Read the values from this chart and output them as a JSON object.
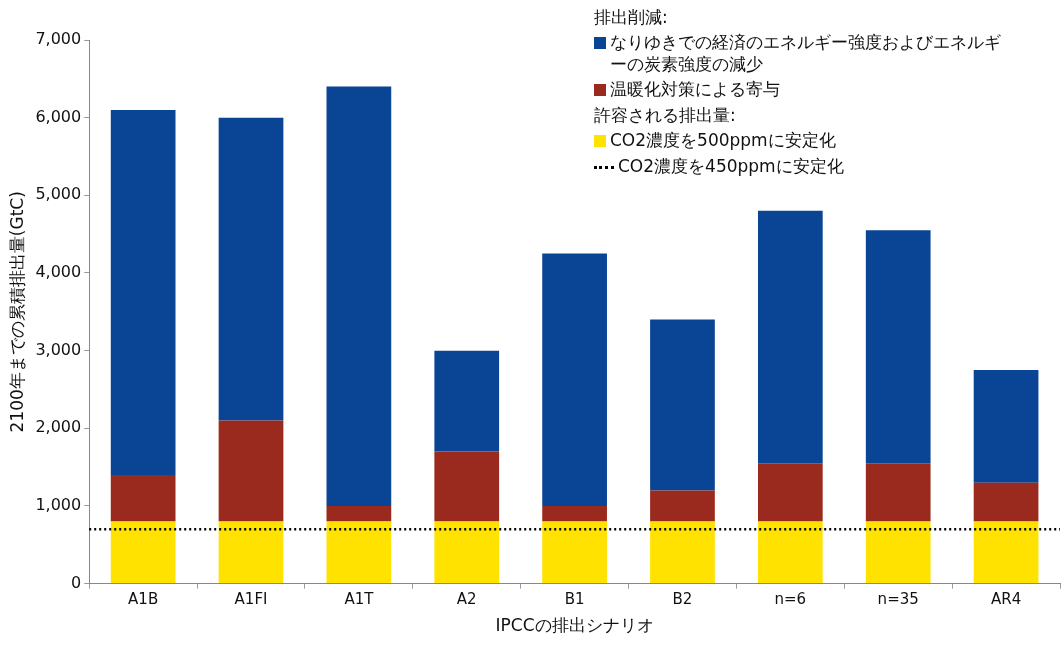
{
  "chart_data": {
    "type": "bar",
    "stacked": true,
    "xlabel": "IPCCの排出シナリオ",
    "ylabel": "2100年までの累積排出量(GtC)",
    "categories": [
      "A1B",
      "A1FI",
      "A1T",
      "A2",
      "B1",
      "B2",
      "n=6",
      "n=35",
      "AR4"
    ],
    "series": [
      {
        "name": "CO2濃度を500ppmに安定化",
        "color": "#ffe200",
        "values": [
          800,
          800,
          800,
          800,
          800,
          800,
          800,
          800,
          800
        ]
      },
      {
        "name": "温暖化対策による寄与",
        "color": "#9a2a1e",
        "values": [
          600,
          1300,
          200,
          900,
          200,
          400,
          750,
          750,
          500
        ]
      },
      {
        "name": "なりゆきでの経済のエネルギー強度およびエネルギーの炭素強度の減少",
        "color": "#0a4595",
        "values": [
          4700,
          3900,
          5400,
          1300,
          3250,
          2200,
          3250,
          3000,
          1450
        ]
      }
    ],
    "ylim": [
      0,
      7000
    ],
    "yticks": [
      0,
      {
        "value": 1000,
        "label": "1,000"
      },
      {
        "value": 2000,
        "label": "2,000"
      },
      {
        "value": 3000,
        "label": "3,000"
      },
      {
        "value": 4000,
        "label": "4,000"
      },
      {
        "value": 5000,
        "label": "5,000"
      },
      {
        "value": 6000,
        "label": "6,000"
      },
      {
        "value": 7000,
        "label": "7,000"
      }
    ],
    "ref_lines": [
      {
        "axis": "y",
        "value": 700,
        "label": "CO2濃度を450ppmに安定化",
        "color": "#000000",
        "line_style": "dotted"
      }
    ],
    "annotations": [
      "排出削減:",
      "許容される排出量:"
    ],
    "legend": "top right",
    "grid": false
  }
}
